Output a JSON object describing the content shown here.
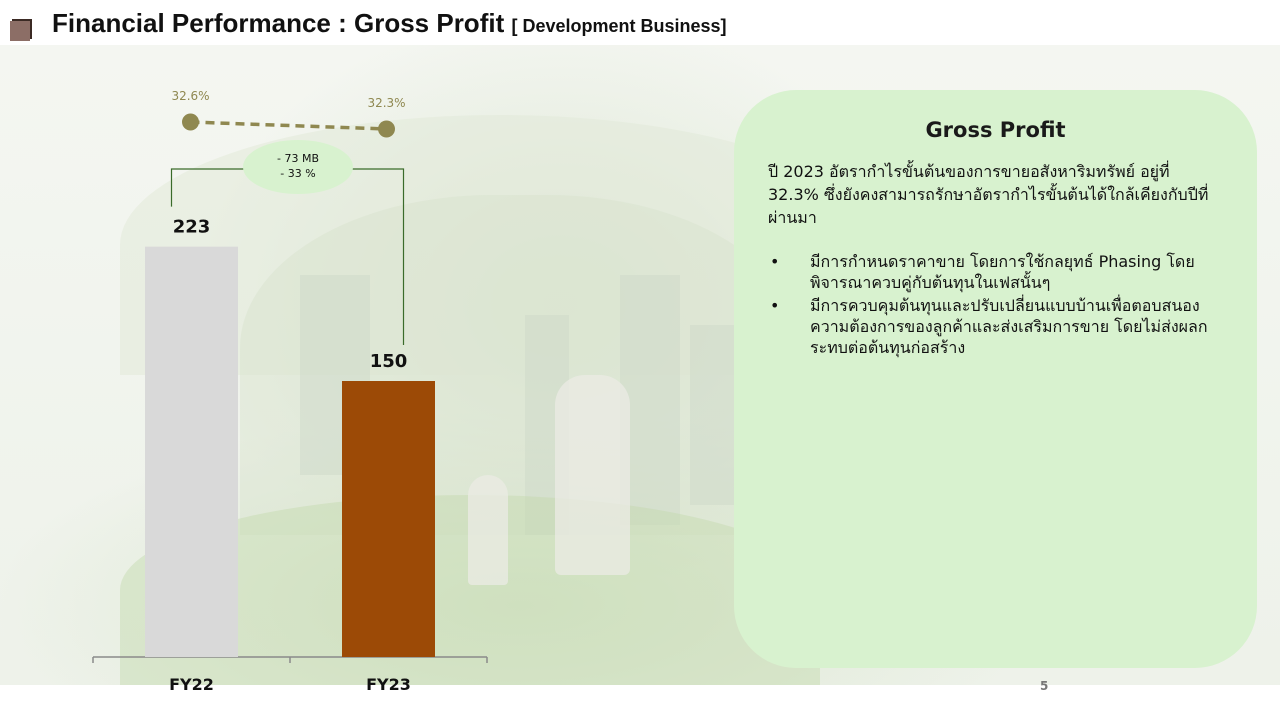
{
  "header": {
    "title": "Financial Performance : Gross Profit",
    "subtitle": "[ Development Business]"
  },
  "chart_data": {
    "type": "bar",
    "categories": [
      "FY22",
      "FY23"
    ],
    "values": [
      223,
      150
    ],
    "colors": [
      "#d9d9d9",
      "#9c4a06"
    ],
    "ylim": [
      0,
      300
    ],
    "grid": false,
    "margin_line": {
      "values": [
        32.6,
        32.3
      ],
      "labels": [
        "32.6%",
        "32.3%"
      ],
      "color": "#8f8850",
      "style": "dashed"
    },
    "change_callout": {
      "lines": [
        "- 73 MB",
        "- 33 %"
      ],
      "color": "#d8f2cf"
    }
  },
  "panel": {
    "title": "Gross Profit",
    "paragraph": "ปี 2023 อัตรากำไรขั้นต้นของการขายอสังหาริมทรัพย์ อยู่ที่ 32.3% ซึ่งยังคงสามารถรักษาอัตรากำไรขั้นต้นได้ใกล้เคียงกับปีที่ผ่านมา",
    "bullet_symbol": "•",
    "bullets": [
      "มีการกำหนดราคาขาย โดยการใช้กลยุทธ์ Phasing โดยพิจารณาควบคู่กับต้นทุนในเฟสนั้นๆ",
      "มีการควบคุมต้นทุนและปรับเปลี่ยนแบบบ้านเพื่อตอบสนองความต้องการของลูกค้าและส่งเสริมการขาย โดยไม่ส่งผลกระทบต่อต้นทุนก่อสร้าง"
    ]
  },
  "footer": {
    "page_number": "5"
  }
}
